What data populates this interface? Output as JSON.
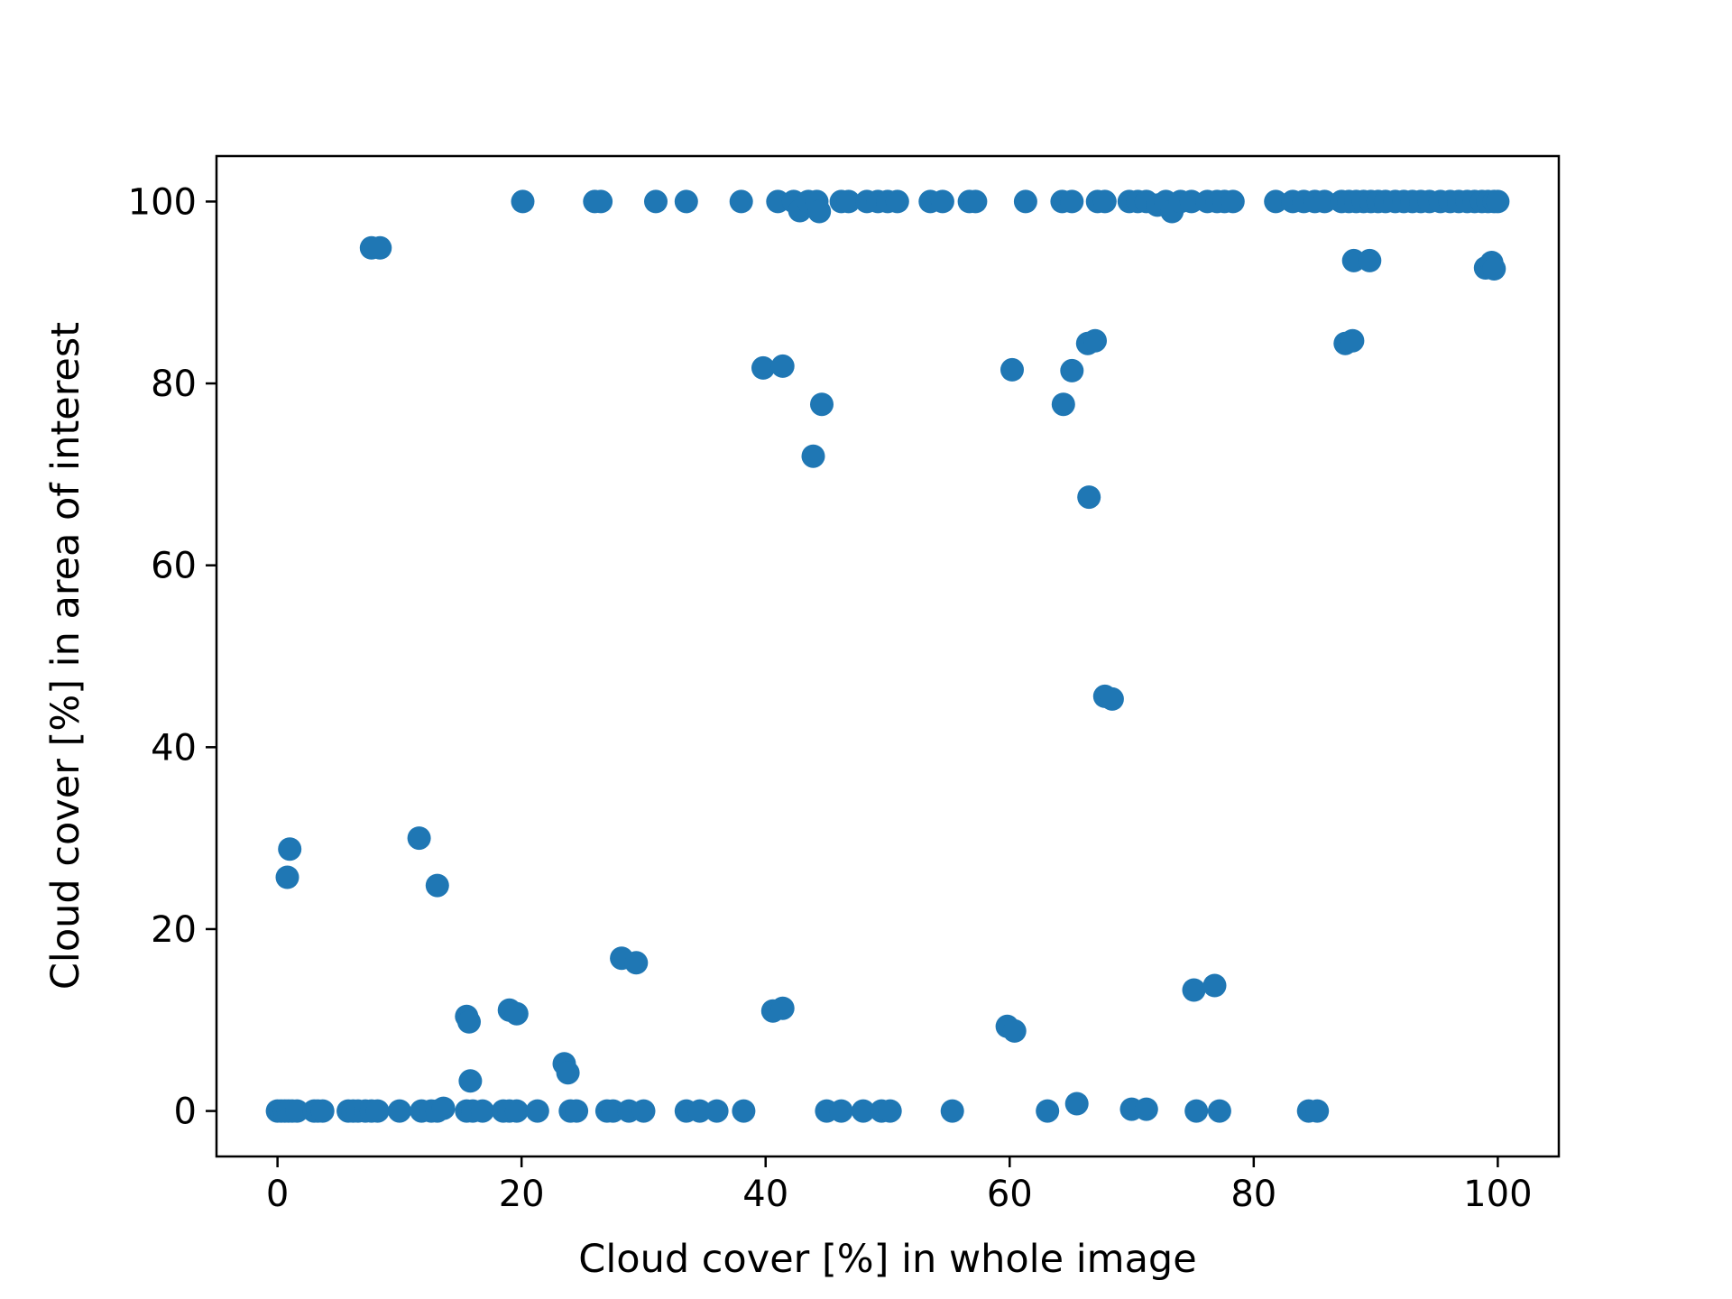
{
  "chart_data": {
    "type": "scatter",
    "title": "",
    "xlabel": "Cloud cover [%] in whole image",
    "ylabel": "Cloud cover [%] in area of interest",
    "xlim": [
      -5,
      105
    ],
    "ylim": [
      -5,
      105
    ],
    "xticks": [
      0,
      20,
      40,
      60,
      80,
      100
    ],
    "yticks": [
      0,
      20,
      40,
      60,
      80,
      100
    ],
    "xtick_labels": [
      "0",
      "20",
      "40",
      "60",
      "80",
      "100"
    ],
    "ytick_labels": [
      "0",
      "20",
      "40",
      "60",
      "80",
      "100"
    ],
    "grid": false,
    "marker_color": "#1f77b4",
    "series": [
      {
        "points": [
          [
            0,
            0
          ],
          [
            0.3,
            0
          ],
          [
            0.6,
            0
          ],
          [
            0.9,
            0
          ],
          [
            1.2,
            0
          ],
          [
            1.6,
            0
          ],
          [
            3,
            0
          ],
          [
            3.3,
            0
          ],
          [
            3.7,
            0
          ],
          [
            5.8,
            0
          ],
          [
            6.2,
            0
          ],
          [
            6.6,
            0
          ],
          [
            7.2,
            0
          ],
          [
            7.7,
            0
          ],
          [
            8.2,
            0
          ],
          [
            10,
            0
          ],
          [
            11.8,
            0
          ],
          [
            12.6,
            0
          ],
          [
            13.1,
            0
          ],
          [
            13.6,
            0.3
          ],
          [
            15.5,
            0
          ],
          [
            16,
            0
          ],
          [
            16.8,
            0
          ],
          [
            18.5,
            0
          ],
          [
            19,
            0
          ],
          [
            19.6,
            0
          ],
          [
            21.3,
            0
          ],
          [
            24,
            0
          ],
          [
            24.5,
            0
          ],
          [
            27,
            0
          ],
          [
            27.5,
            0
          ],
          [
            28.8,
            0
          ],
          [
            30,
            0
          ],
          [
            33.5,
            0
          ],
          [
            34.6,
            0
          ],
          [
            36,
            0
          ],
          [
            38.2,
            0
          ],
          [
            45,
            0
          ],
          [
            46.2,
            0
          ],
          [
            48,
            0
          ],
          [
            49.5,
            0
          ],
          [
            50.2,
            0
          ],
          [
            55.3,
            0
          ],
          [
            63.1,
            0
          ],
          [
            65.5,
            0.8
          ],
          [
            70,
            0.2
          ],
          [
            71.2,
            0.2
          ],
          [
            75.3,
            0
          ],
          [
            77.2,
            0
          ],
          [
            84.5,
            0
          ],
          [
            85.2,
            0
          ],
          [
            0.8,
            25.7
          ],
          [
            1,
            28.8
          ],
          [
            11.6,
            30
          ],
          [
            13.1,
            24.8
          ],
          [
            15.8,
            3.3
          ],
          [
            15.5,
            10.4
          ],
          [
            15.7,
            9.8
          ],
          [
            19,
            11.1
          ],
          [
            19.6,
            10.7
          ],
          [
            23.5,
            5.2
          ],
          [
            23.8,
            4.2
          ],
          [
            28.2,
            16.8
          ],
          [
            29.4,
            16.3
          ],
          [
            40.6,
            11
          ],
          [
            41.4,
            11.3
          ],
          [
            59.8,
            9.3
          ],
          [
            60.4,
            8.8
          ],
          [
            75.1,
            13.3
          ],
          [
            76.8,
            13.8
          ],
          [
            67.8,
            45.6
          ],
          [
            68.4,
            45.3
          ],
          [
            66.5,
            67.5
          ],
          [
            43.9,
            72
          ],
          [
            44.6,
            77.7
          ],
          [
            64.4,
            77.7
          ],
          [
            39.8,
            81.7
          ],
          [
            41.4,
            81.9
          ],
          [
            60.2,
            81.5
          ],
          [
            65.1,
            81.4
          ],
          [
            66.4,
            84.4
          ],
          [
            67,
            84.7
          ],
          [
            87.5,
            84.4
          ],
          [
            88.1,
            84.7
          ],
          [
            88.2,
            93.5
          ],
          [
            89.5,
            93.5
          ],
          [
            99,
            92.7
          ],
          [
            99.5,
            93.3
          ],
          [
            99.7,
            92.6
          ],
          [
            7.7,
            94.9
          ],
          [
            8.4,
            94.9
          ],
          [
            20.1,
            100
          ],
          [
            26,
            100
          ],
          [
            26.5,
            100
          ],
          [
            31,
            100
          ],
          [
            33.5,
            100
          ],
          [
            38,
            100
          ],
          [
            41,
            100
          ],
          [
            42.3,
            100
          ],
          [
            42.8,
            99
          ],
          [
            43.5,
            100
          ],
          [
            44.2,
            100
          ],
          [
            44.4,
            98.9
          ],
          [
            46.2,
            100
          ],
          [
            46.8,
            100
          ],
          [
            48.3,
            100
          ],
          [
            49.2,
            100
          ],
          [
            50,
            100
          ],
          [
            50.8,
            100
          ],
          [
            53.5,
            100
          ],
          [
            54.5,
            100
          ],
          [
            56.7,
            100
          ],
          [
            57.2,
            100
          ],
          [
            61.3,
            100
          ],
          [
            64.3,
            100
          ],
          [
            65.1,
            100
          ],
          [
            67.2,
            100
          ],
          [
            67.8,
            100
          ],
          [
            69.8,
            100
          ],
          [
            70.5,
            100
          ],
          [
            71.2,
            100
          ],
          [
            72.1,
            99.6
          ],
          [
            72.8,
            100
          ],
          [
            73.3,
            98.9
          ],
          [
            74,
            100
          ],
          [
            74.9,
            100
          ],
          [
            76.2,
            100
          ],
          [
            77,
            100
          ],
          [
            77.6,
            100
          ],
          [
            78.3,
            100
          ],
          [
            81.8,
            100
          ],
          [
            83.2,
            100
          ],
          [
            84.1,
            100
          ],
          [
            85,
            100
          ],
          [
            85.8,
            100
          ],
          [
            87.2,
            100
          ],
          [
            87.8,
            100
          ],
          [
            88.4,
            100
          ],
          [
            89,
            100
          ],
          [
            89.6,
            100
          ],
          [
            90.2,
            100
          ],
          [
            90.8,
            100
          ],
          [
            91.6,
            100
          ],
          [
            92.3,
            100
          ],
          [
            93,
            100
          ],
          [
            93.7,
            100
          ],
          [
            94.4,
            100
          ],
          [
            95.3,
            100
          ],
          [
            96.1,
            100
          ],
          [
            96.8,
            100
          ],
          [
            97.5,
            100
          ],
          [
            98.1,
            100
          ],
          [
            98.7,
            100
          ],
          [
            99.2,
            100
          ],
          [
            99.7,
            100
          ],
          [
            100,
            100
          ]
        ]
      }
    ]
  }
}
